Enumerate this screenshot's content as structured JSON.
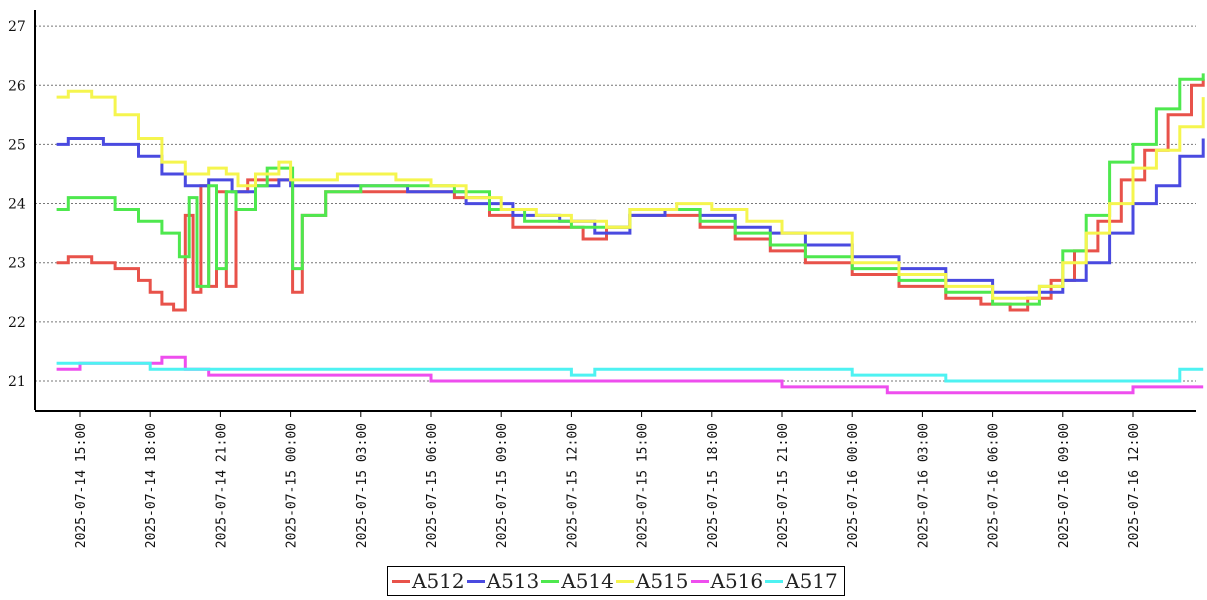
{
  "chart_data": {
    "type": "line",
    "title": "",
    "xlabel": "",
    "ylabel": "",
    "ylim": [
      20.5,
      27.3
    ],
    "xlim": [
      "2025-07-14 13:15",
      "2025-07-16 16:15"
    ],
    "yticks": [
      21,
      22,
      23,
      24,
      25,
      26,
      27
    ],
    "xticks": [
      "2025-07-14 15:00",
      "2025-07-14 18:00",
      "2025-07-14 21:00",
      "2025-07-15 00:00",
      "2025-07-15 03:00",
      "2025-07-15 06:00",
      "2025-07-15 09:00",
      "2025-07-15 12:00",
      "2025-07-15 15:00",
      "2025-07-15 18:00",
      "2025-07-15 21:00",
      "2025-07-16 00:00",
      "2025-07-16 03:00",
      "2025-07-16 06:00",
      "2025-07-16 09:00",
      "2025-07-16 12:00"
    ],
    "grid": "horizontal-dotted",
    "legend_position": "bottom-center",
    "series": [
      {
        "name": "A512",
        "color": "#e8524a",
        "x": [
          "2025-07-14 14:00",
          "2025-07-14 14:30",
          "2025-07-14 15:30",
          "2025-07-14 16:30",
          "2025-07-14 17:30",
          "2025-07-14 18:00",
          "2025-07-14 18:30",
          "2025-07-14 19:00",
          "2025-07-14 19:30",
          "2025-07-14 19:50",
          "2025-07-14 20:10",
          "2025-07-14 20:30",
          "2025-07-14 20:50",
          "2025-07-14 21:15",
          "2025-07-14 21:40",
          "2025-07-14 22:10",
          "2025-07-14 23:00",
          "2025-07-14 23:50",
          "2025-07-15 00:05",
          "2025-07-15 00:30",
          "2025-07-15 01:30",
          "2025-07-15 03:00",
          "2025-07-15 05:00",
          "2025-07-15 07:00",
          "2025-07-15 08:30",
          "2025-07-15 09:30",
          "2025-07-15 11:30",
          "2025-07-15 12:30",
          "2025-07-15 13:30",
          "2025-07-15 14:30",
          "2025-07-15 16:00",
          "2025-07-15 17:30",
          "2025-07-15 19:00",
          "2025-07-15 20:30",
          "2025-07-15 22:00",
          "2025-07-16 00:00",
          "2025-07-16 02:00",
          "2025-07-16 04:00",
          "2025-07-16 05:30",
          "2025-07-16 06:45",
          "2025-07-16 07:30",
          "2025-07-16 08:30",
          "2025-07-16 09:30",
          "2025-07-16 10:30",
          "2025-07-16 11:30",
          "2025-07-16 12:30",
          "2025-07-16 13:30",
          "2025-07-16 14:30",
          "2025-07-16 15:00"
        ],
        "y": [
          23.0,
          23.1,
          23.0,
          22.9,
          22.7,
          22.5,
          22.3,
          22.2,
          23.8,
          22.5,
          24.3,
          22.6,
          24.2,
          22.6,
          24.2,
          24.4,
          24.4,
          24.4,
          22.5,
          23.8,
          24.2,
          24.2,
          24.2,
          24.1,
          23.8,
          23.6,
          23.6,
          23.4,
          23.6,
          23.8,
          23.8,
          23.6,
          23.4,
          23.2,
          23.0,
          22.8,
          22.6,
          22.4,
          22.3,
          22.2,
          22.4,
          22.7,
          23.2,
          23.7,
          24.4,
          24.9,
          25.5,
          26.0,
          26.1
        ]
      },
      {
        "name": "A513",
        "color": "#4a4ae0",
        "x": [
          "2025-07-14 14:00",
          "2025-07-14 14:30",
          "2025-07-14 16:00",
          "2025-07-14 17:30",
          "2025-07-14 18:30",
          "2025-07-14 19:30",
          "2025-07-14 20:30",
          "2025-07-14 21:30",
          "2025-07-14 22:30",
          "2025-07-14 23:30",
          "2025-07-15 00:00",
          "2025-07-15 01:30",
          "2025-07-15 05:00",
          "2025-07-15 07:30",
          "2025-07-15 09:30",
          "2025-07-15 11:30",
          "2025-07-15 13:00",
          "2025-07-15 14:30",
          "2025-07-15 16:00",
          "2025-07-15 17:30",
          "2025-07-15 19:00",
          "2025-07-15 20:30",
          "2025-07-15 22:00",
          "2025-07-16 00:00",
          "2025-07-16 02:00",
          "2025-07-16 04:00",
          "2025-07-16 06:00",
          "2025-07-16 08:00",
          "2025-07-16 09:00",
          "2025-07-16 10:00",
          "2025-07-16 11:00",
          "2025-07-16 12:00",
          "2025-07-16 13:00",
          "2025-07-16 14:00",
          "2025-07-16 15:00"
        ],
        "y": [
          25.0,
          25.1,
          25.0,
          24.8,
          24.5,
          24.3,
          24.4,
          24.2,
          24.3,
          24.4,
          24.3,
          24.3,
          24.2,
          24.0,
          23.8,
          23.7,
          23.5,
          23.8,
          23.9,
          23.8,
          23.6,
          23.5,
          23.3,
          23.1,
          22.9,
          22.7,
          22.5,
          22.5,
          22.7,
          23.0,
          23.5,
          24.0,
          24.3,
          24.8,
          25.1
        ]
      },
      {
        "name": "A514",
        "color": "#4ee84e",
        "x": [
          "2025-07-14 14:00",
          "2025-07-14 14:30",
          "2025-07-14 15:30",
          "2025-07-14 16:30",
          "2025-07-14 17:30",
          "2025-07-14 18:30",
          "2025-07-14 19:15",
          "2025-07-14 19:40",
          "2025-07-14 20:00",
          "2025-07-14 20:30",
          "2025-07-14 20:50",
          "2025-07-14 21:15",
          "2025-07-14 21:40",
          "2025-07-14 22:30",
          "2025-07-14 23:00",
          "2025-07-14 23:50",
          "2025-07-15 00:05",
          "2025-07-15 00:30",
          "2025-07-15 01:30",
          "2025-07-15 03:00",
          "2025-07-15 05:00",
          "2025-07-15 07:00",
          "2025-07-15 08:30",
          "2025-07-15 10:00",
          "2025-07-15 12:00",
          "2025-07-15 13:30",
          "2025-07-15 14:30",
          "2025-07-15 16:00",
          "2025-07-15 17:30",
          "2025-07-15 19:00",
          "2025-07-15 20:30",
          "2025-07-15 22:00",
          "2025-07-16 00:00",
          "2025-07-16 02:00",
          "2025-07-16 04:00",
          "2025-07-16 06:00",
          "2025-07-16 07:00",
          "2025-07-16 08:00",
          "2025-07-16 09:00",
          "2025-07-16 10:00",
          "2025-07-16 11:00",
          "2025-07-16 12:00",
          "2025-07-16 13:00",
          "2025-07-16 14:00",
          "2025-07-16 15:00"
        ],
        "y": [
          23.9,
          24.1,
          24.1,
          23.9,
          23.7,
          23.5,
          23.1,
          24.1,
          22.6,
          24.3,
          22.9,
          24.2,
          23.9,
          24.3,
          24.6,
          24.6,
          22.9,
          23.8,
          24.2,
          24.3,
          24.3,
          24.2,
          23.9,
          23.7,
          23.6,
          23.6,
          23.9,
          23.9,
          23.7,
          23.5,
          23.3,
          23.1,
          22.9,
          22.7,
          22.5,
          22.3,
          22.3,
          22.6,
          23.2,
          23.8,
          24.7,
          25.0,
          25.6,
          26.1,
          26.2
        ]
      },
      {
        "name": "A515",
        "color": "#f5f54e",
        "x": [
          "2025-07-14 14:00",
          "2025-07-14 14:30",
          "2025-07-14 15:30",
          "2025-07-14 16:30",
          "2025-07-14 17:30",
          "2025-07-14 18:30",
          "2025-07-14 19:30",
          "2025-07-14 20:30",
          "2025-07-14 21:15",
          "2025-07-14 21:45",
          "2025-07-14 22:30",
          "2025-07-14 23:30",
          "2025-07-15 00:00",
          "2025-07-15 02:00",
          "2025-07-15 04:30",
          "2025-07-15 06:00",
          "2025-07-15 07:30",
          "2025-07-15 09:00",
          "2025-07-15 10:30",
          "2025-07-15 12:00",
          "2025-07-15 13:30",
          "2025-07-15 14:30",
          "2025-07-15 16:30",
          "2025-07-15 18:00",
          "2025-07-15 19:30",
          "2025-07-15 21:00",
          "2025-07-16 00:00",
          "2025-07-16 02:00",
          "2025-07-16 04:00",
          "2025-07-16 06:00",
          "2025-07-16 07:00",
          "2025-07-16 08:00",
          "2025-07-16 09:00",
          "2025-07-16 10:00",
          "2025-07-16 11:00",
          "2025-07-16 12:00",
          "2025-07-16 13:00",
          "2025-07-16 14:00",
          "2025-07-16 15:00"
        ],
        "y": [
          25.8,
          25.9,
          25.8,
          25.5,
          25.1,
          24.7,
          24.5,
          24.6,
          24.5,
          24.3,
          24.5,
          24.7,
          24.4,
          24.5,
          24.4,
          24.3,
          24.1,
          23.9,
          23.8,
          23.7,
          23.6,
          23.9,
          24.0,
          23.9,
          23.7,
          23.5,
          23.0,
          22.8,
          22.6,
          22.4,
          22.4,
          22.6,
          23.0,
          23.5,
          24.0,
          24.6,
          24.9,
          25.3,
          25.8
        ]
      },
      {
        "name": "A516",
        "color": "#ee4eee",
        "x": [
          "2025-07-14 14:00",
          "2025-07-14 15:00",
          "2025-07-14 17:00",
          "2025-07-14 18:30",
          "2025-07-14 19:30",
          "2025-07-14 20:30",
          "2025-07-14 22:00",
          "2025-07-15 00:00",
          "2025-07-15 04:00",
          "2025-07-15 06:00",
          "2025-07-15 10:00",
          "2025-07-15 14:00",
          "2025-07-15 20:00",
          "2025-07-15 21:00",
          "2025-07-16 00:00",
          "2025-07-16 01:30",
          "2025-07-16 03:00",
          "2025-07-16 06:00",
          "2025-07-16 11:00",
          "2025-07-16 12:00",
          "2025-07-16 15:00"
        ],
        "y": [
          21.2,
          21.3,
          21.3,
          21.4,
          21.2,
          21.1,
          21.1,
          21.1,
          21.1,
          21.0,
          21.0,
          21.0,
          21.0,
          20.9,
          20.9,
          20.8,
          20.8,
          20.8,
          20.8,
          20.9,
          20.9
        ]
      },
      {
        "name": "A517",
        "color": "#4ef2f2",
        "x": [
          "2025-07-14 14:00",
          "2025-07-14 16:00",
          "2025-07-14 18:00",
          "2025-07-14 20:00",
          "2025-07-15 00:00",
          "2025-07-15 06:00",
          "2025-07-15 12:00",
          "2025-07-15 13:00",
          "2025-07-15 15:00",
          "2025-07-15 18:00",
          "2025-07-15 21:00",
          "2025-07-16 00:00",
          "2025-07-16 03:00",
          "2025-07-16 04:00",
          "2025-07-16 06:00",
          "2025-07-16 09:00",
          "2025-07-16 12:00",
          "2025-07-16 14:00",
          "2025-07-16 15:00"
        ],
        "y": [
          21.3,
          21.3,
          21.2,
          21.2,
          21.2,
          21.2,
          21.1,
          21.2,
          21.2,
          21.2,
          21.2,
          21.1,
          21.1,
          21.0,
          21.0,
          21.0,
          21.0,
          21.2,
          21.2
        ]
      }
    ]
  }
}
